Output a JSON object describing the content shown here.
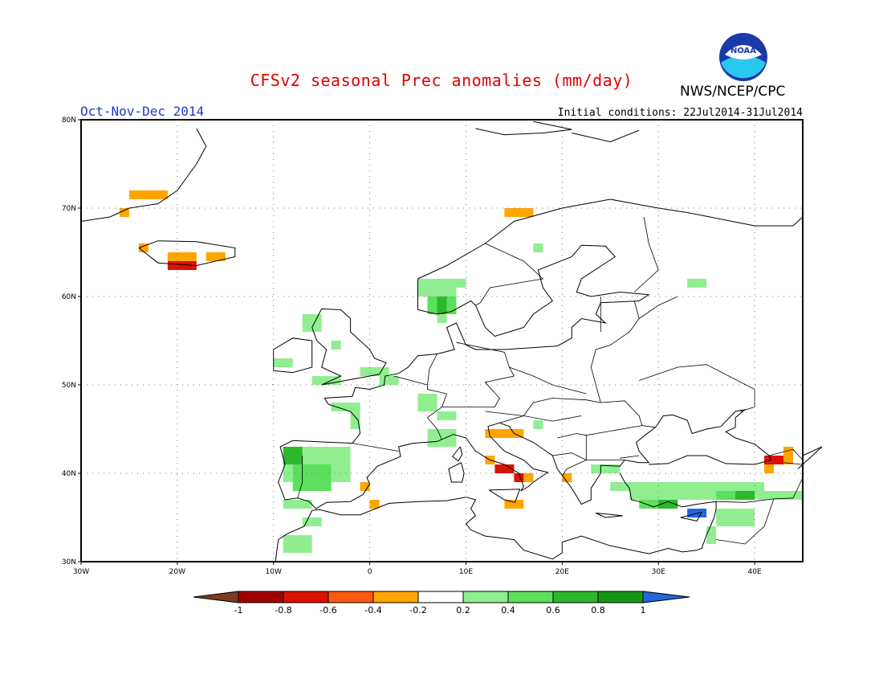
{
  "header": {
    "title": "CFSv2 seasonal Prec anomalies (mm/day)",
    "season": "Oct-Nov-Dec 2014",
    "initial_conditions": "Initial conditions: 22Jul2014-31Jul2014",
    "organization": "NWS/NCEP/CPC",
    "logo_text": "NOAA"
  },
  "map": {
    "lon_labels": [
      "30W",
      "20W",
      "10W",
      "0",
      "10E",
      "20E",
      "30E",
      "40E"
    ],
    "lat_labels": [
      "80N",
      "70N",
      "60N",
      "50N",
      "40N",
      "30N"
    ],
    "lon_range": [
      -30,
      45
    ],
    "lat_range": [
      30,
      80
    ]
  },
  "colorbar": {
    "tick_labels": [
      "-1",
      "-0.8",
      "-0.6",
      "-0.4",
      "-0.2",
      "0.2",
      "0.4",
      "0.6",
      "0.8",
      "1"
    ],
    "colors": [
      "#7a3c1e",
      "#a10000",
      "#dd1100",
      "#ff5a10",
      "#ffa500",
      "#ffffff",
      "#90ee90",
      "#5ce05c",
      "#2cb82c",
      "#149614",
      "#2266dd"
    ]
  },
  "legend_colors": {
    "dry_strong": "#dd1100",
    "dry": "#ffa500",
    "wet_light": "#90ee90",
    "wet": "#5ce05c",
    "wet_strong": "#2cb82c",
    "wet_vstrong": "#149614",
    "wet_extreme": "#2266dd"
  }
}
